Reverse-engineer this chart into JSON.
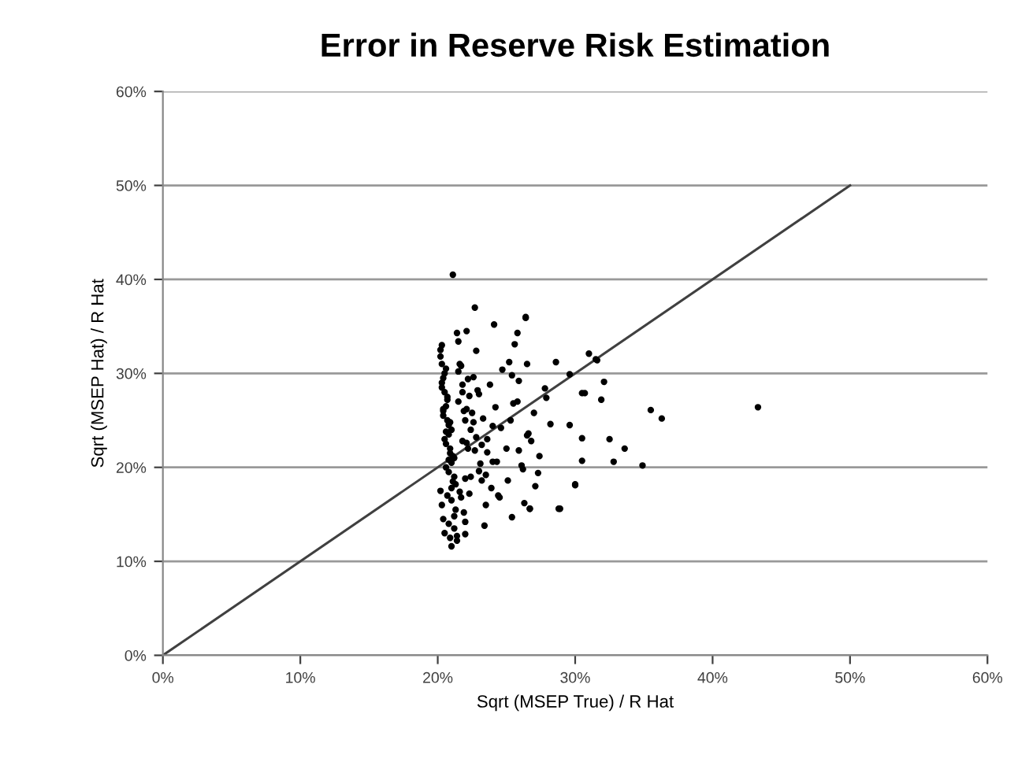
{
  "chart_data": {
    "type": "scatter",
    "title": "Error in Reserve Risk Estimation",
    "xlabel": "Sqrt (MSEP True) / R Hat",
    "ylabel": "Sqrt (MSEP Hat) / R Hat",
    "xlim": [
      0,
      60
    ],
    "ylim": [
      0,
      60
    ],
    "xticks": [
      {
        "value": 0,
        "label": "0%"
      },
      {
        "value": 10,
        "label": "10%"
      },
      {
        "value": 20,
        "label": "20%"
      },
      {
        "value": 30,
        "label": "30%"
      },
      {
        "value": 40,
        "label": "40%"
      },
      {
        "value": 50,
        "label": "50%"
      },
      {
        "value": 60,
        "label": "60%"
      }
    ],
    "yticks": [
      {
        "value": 0,
        "label": "0%"
      },
      {
        "value": 10,
        "label": "10%"
      },
      {
        "value": 20,
        "label": "20%"
      },
      {
        "value": 30,
        "label": "30%"
      },
      {
        "value": 40,
        "label": "40%"
      },
      {
        "value": 50,
        "label": "50%"
      },
      {
        "value": 60,
        "label": "60%"
      }
    ],
    "grid": "y",
    "marker": "circle",
    "legend": false,
    "series": [
      {
        "color": "#000000",
        "x": [
          21.1,
          22.7,
          24.1,
          26.4,
          21.4,
          22.1,
          25.8,
          25.6,
          31.0,
          31.5,
          28.6,
          26.5,
          30.7,
          29.6,
          30.5,
          30.0,
          28.8,
          25.4,
          26.7,
          21.0,
          21.4,
          22.0,
          43.3,
          35.5,
          36.3,
          34.9,
          33.6,
          32.5,
          32.8,
          32.1,
          31.6,
          31.9,
          30.5,
          30.5,
          30.0,
          28.9,
          26.7,
          26.4,
          29.6,
          20.2,
          20.3,
          20.4,
          20.5,
          20.6,
          20.7,
          20.8,
          20.9,
          21.0,
          21.2,
          20.2,
          20.3,
          20.4,
          20.5,
          20.6,
          20.7,
          20.8,
          20.9,
          21.1,
          21.3,
          20.2,
          20.3,
          20.4,
          20.5,
          20.6,
          20.7,
          20.8,
          20.9,
          21.0,
          21.2,
          20.3,
          20.4,
          20.6,
          20.8,
          21.0,
          21.2,
          21.5,
          21.8,
          22.0,
          21.5,
          21.8,
          22.1,
          22.4,
          22.7,
          23.0,
          21.6,
          21.9,
          22.2,
          22.5,
          22.8,
          23.1,
          21.7,
          22.0,
          22.3,
          22.6,
          23.2,
          23.5,
          23.8,
          24.2,
          24.6,
          25.0,
          25.4,
          25.8,
          26.2,
          26.6,
          27.0,
          27.4,
          27.8,
          28.2,
          23.9,
          24.3,
          24.7,
          25.1,
          25.5,
          25.9,
          26.3,
          26.8,
          27.3,
          27.9,
          24.0,
          24.5,
          25.2,
          25.9,
          26.5,
          27.1,
          23.6,
          24.4,
          25.3,
          26.1,
          20.3,
          20.5,
          20.7,
          20.9,
          21.1,
          21.3,
          20.4,
          20.6,
          20.8,
          21.0,
          21.2,
          21.4,
          21.6,
          21.8,
          22.0,
          22.2,
          22.4,
          21.5,
          21.7,
          21.9,
          22.1,
          22.3,
          23.0,
          23.3,
          23.6,
          24.0,
          22.6,
          22.9,
          23.2,
          23.5,
          22.8,
          23.4
        ],
        "values": [
          40.5,
          37.0,
          35.2,
          35.9,
          34.3,
          34.5,
          34.3,
          33.1,
          32.1,
          31.5,
          31.2,
          31.0,
          27.9,
          24.5,
          20.7,
          18.1,
          15.6,
          14.7,
          15.6,
          11.6,
          12.7,
          12.9,
          26.4,
          26.1,
          25.2,
          20.2,
          22.0,
          23.0,
          20.6,
          29.1,
          31.4,
          27.2,
          27.9,
          23.1,
          18.2,
          15.6,
          15.6,
          36.0,
          29.9,
          32.5,
          31.0,
          29.5,
          28.0,
          26.5,
          25.0,
          23.5,
          22.0,
          20.5,
          19.0,
          17.5,
          16.0,
          14.5,
          13.0,
          30.5,
          27.5,
          24.5,
          21.5,
          18.5,
          15.5,
          31.8,
          29.0,
          26.0,
          23.0,
          20.0,
          17.0,
          14.0,
          12.5,
          24.0,
          21.0,
          28.5,
          25.5,
          22.5,
          19.5,
          16.5,
          13.5,
          27.0,
          22.8,
          18.8,
          30.2,
          28.8,
          26.2,
          24.0,
          21.8,
          19.6,
          17.4,
          15.2,
          29.4,
          25.8,
          23.2,
          20.4,
          16.8,
          14.2,
          27.6,
          24.8,
          22.4,
          19.2,
          28.8,
          26.4,
          24.2,
          22.0,
          29.8,
          27.0,
          19.8,
          23.6,
          25.8,
          21.2,
          28.4,
          24.6,
          17.8,
          20.6,
          30.4,
          18.6,
          26.8,
          21.8,
          16.2,
          22.8,
          19.4,
          27.4,
          24.4,
          16.8,
          31.2,
          29.2,
          23.4,
          18.0,
          21.6,
          17.0,
          25.0,
          20.2,
          33.0,
          30.0,
          27.2,
          24.8,
          21.2,
          18.2,
          26.2,
          23.8,
          20.8,
          17.8,
          14.8,
          12.2,
          31.0,
          28.0,
          25.0,
          22.0,
          19.0,
          33.4,
          30.8,
          26.0,
          22.6,
          17.2,
          27.8,
          25.2,
          23.0,
          20.6,
          29.6,
          28.2,
          18.6,
          16.0,
          32.4,
          13.8
        ]
      },
      {
        "type": "line",
        "color": "#404040",
        "x": [
          0,
          50
        ],
        "values": [
          0,
          50
        ],
        "marker": "none"
      }
    ]
  }
}
